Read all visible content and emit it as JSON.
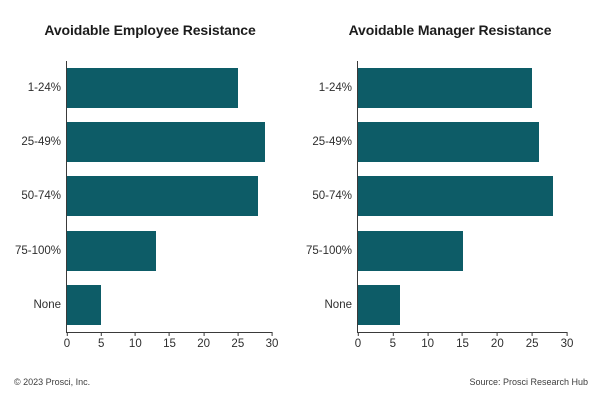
{
  "figure": {
    "background": "#ffffff"
  },
  "colors": {
    "bar": "#0d5c67",
    "axis": "#3a3a3a",
    "tick_text": "#2e2e2e",
    "title_text": "#1c1c1c",
    "footer_text": "#3d3d3d"
  },
  "footer": {
    "copyright": "© 2023 Prosci, Inc.",
    "source": "Source: Prosci Research Hub"
  },
  "chart_data": [
    {
      "type": "bar",
      "orientation": "horizontal",
      "title": "Avoidable Employee Resistance",
      "categories": [
        "1-24%",
        "25-49%",
        "50-74%",
        "75-100%",
        "None"
      ],
      "values": [
        25,
        29,
        28,
        13,
        5
      ],
      "xlabel": "",
      "ylabel": "",
      "xlim": [
        0,
        30
      ],
      "xticks": [
        0,
        5,
        10,
        15,
        20,
        25,
        30
      ],
      "grid": false,
      "legend": false,
      "bar_color": "#0d5c67"
    },
    {
      "type": "bar",
      "orientation": "horizontal",
      "title": "Avoidable Manager Resistance",
      "categories": [
        "1-24%",
        "25-49%",
        "50-74%",
        "75-100%",
        "None"
      ],
      "values": [
        25,
        26,
        28,
        15,
        6
      ],
      "xlabel": "",
      "ylabel": "",
      "xlim": [
        0,
        30
      ],
      "xticks": [
        0,
        5,
        10,
        15,
        20,
        25,
        30
      ],
      "grid": false,
      "legend": false,
      "bar_color": "#0d5c67"
    }
  ]
}
